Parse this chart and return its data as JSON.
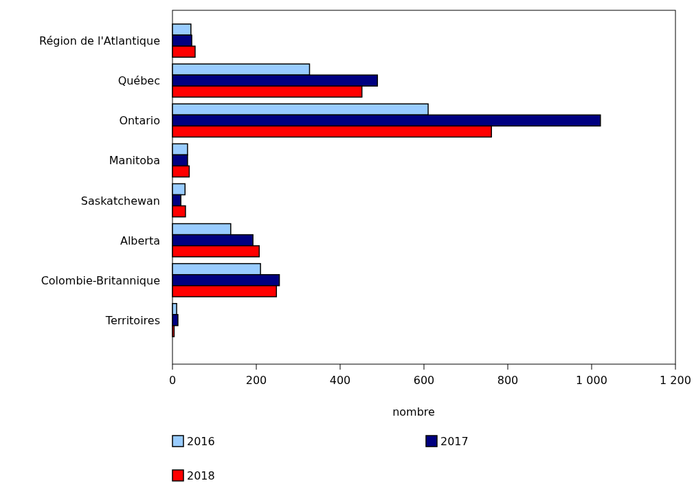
{
  "chart_data": {
    "type": "bar",
    "orientation": "horizontal",
    "xlabel": "nombre",
    "categories": [
      "Région de l'Atlantique",
      "Québec",
      "Ontario",
      "Manitoba",
      "Saskatchewan",
      "Alberta",
      "Colombie-Britannique",
      "Territoires"
    ],
    "series": [
      {
        "name": "2016",
        "color": "#99ccff",
        "values": [
          44,
          327,
          610,
          36,
          30,
          139,
          210,
          10
        ]
      },
      {
        "name": "2017",
        "color": "#000080",
        "values": [
          46,
          489,
          1021,
          36,
          20,
          192,
          255,
          13
        ]
      },
      {
        "name": "2018",
        "color": "#ff0000",
        "values": [
          54,
          452,
          761,
          40,
          31,
          207,
          248,
          4
        ]
      }
    ],
    "xlim": [
      0,
      1200
    ],
    "xticks": [
      0,
      200,
      400,
      600,
      800,
      {
        "value": 1000,
        "label": "1 000"
      },
      {
        "value": 1200,
        "label": "1 200"
      }
    ],
    "grid": false,
    "legend": "bottom"
  }
}
